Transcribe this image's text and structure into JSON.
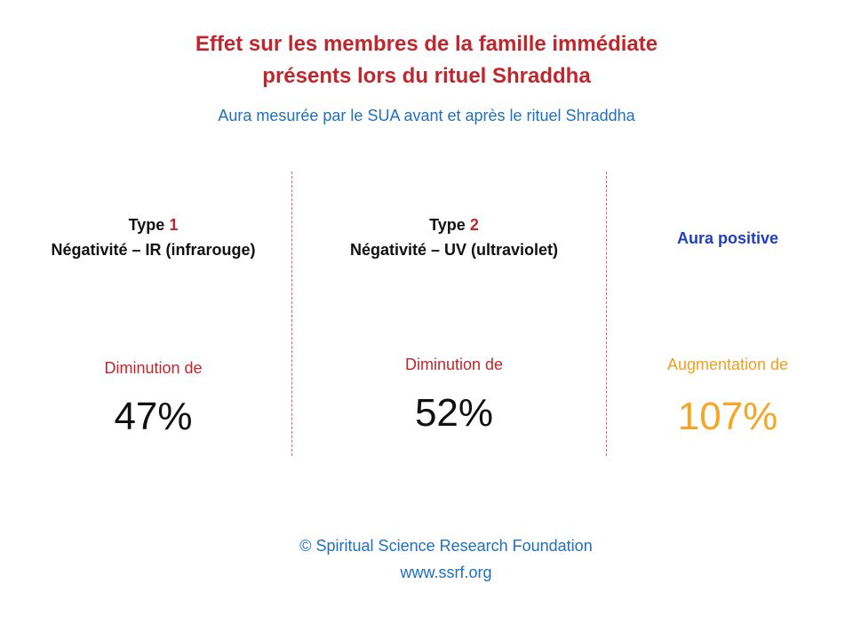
{
  "title": {
    "line1": "Effet sur les membres de la famille immédiate",
    "line2": "présents lors du rituel Shraddha"
  },
  "subtitle": "Aura mesurée par le SUA avant et après le rituel Shraddha",
  "columns": [
    {
      "type_word": "Type",
      "type_num": "1",
      "heading": "Négativité – IR (infrarouge)",
      "change_label": "Diminution de",
      "value": "47%",
      "color": "#111111"
    },
    {
      "type_word": "Type",
      "type_num": "2",
      "heading": "Négativité – UV (ultraviolet)",
      "change_label": "Diminution de",
      "value": "52%",
      "color": "#111111"
    },
    {
      "heading": "Aura positive",
      "change_label": "Augmentation de",
      "value": "107%",
      "color": "#f5a623"
    }
  ],
  "footer": {
    "copyright": "© Spiritual Science Research Foundation",
    "url": "www.ssrf.org"
  },
  "colors": {
    "title": "#c0272d",
    "subtitle": "#1f6fbf",
    "aura_heading": "#1f3fbf",
    "increase": "#f5a623",
    "divider": "#e06060"
  }
}
